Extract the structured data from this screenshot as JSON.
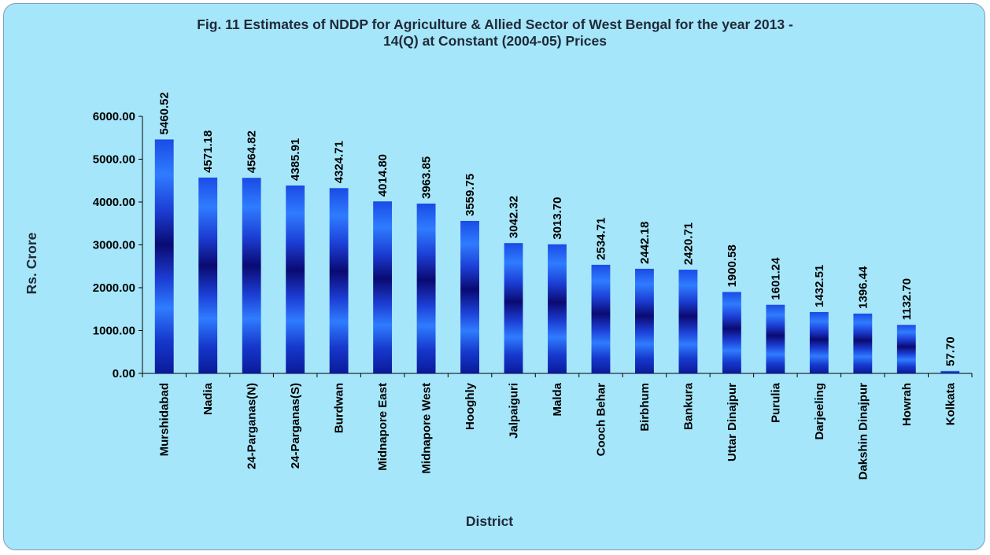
{
  "chart_data": {
    "type": "bar",
    "title": "Fig. 11 Estimates of NDDP for Agriculture & Allied Sector of West Bengal for the year 2013 -\n14(Q) at Constant (2004-05) Prices",
    "xlabel": "District",
    "ylabel": "Rs. Crore",
    "ylim": [
      0,
      6000
    ],
    "yticks": [
      "0.00",
      "1000.00",
      "2000.00",
      "3000.00",
      "4000.00",
      "5000.00",
      "6000.00"
    ],
    "grid": false,
    "legend": "none",
    "categories": [
      "Murshidabad",
      "Nadia",
      "24-Parganas(N)",
      "24-Parganas(S)",
      "Burdwan",
      "Midnapore East",
      "Midnapore West",
      "Hooghly",
      "Jalpaiguri",
      "Malda",
      "Cooch Behar",
      "Birbhum",
      "Bankura",
      "Uttar Dinajpur",
      "Purulia",
      "Darjeeling",
      "Dakshin Dinajpur",
      "Howrah",
      "Kolkata"
    ],
    "values": [
      5460.52,
      4571.18,
      4564.82,
      4385.91,
      4324.71,
      4014.8,
      3963.85,
      3559.75,
      3042.32,
      3013.7,
      2534.71,
      2442.18,
      2420.71,
      1900.58,
      1601.24,
      1432.51,
      1396.44,
      1132.7,
      57.7
    ],
    "data_labels": [
      "5460.52",
      "4571.18",
      "4564.82",
      "4385.91",
      "4324.71",
      "4014.80",
      "3963.85",
      "3559.75",
      "3042.32",
      "3013.70",
      "2534.71",
      "2442.18",
      "2420.71",
      "1900.58",
      "1601.24",
      "1432.51",
      "1396.44",
      "1132.70",
      "57.70"
    ]
  },
  "colors": {
    "background": "#a6e6fb",
    "border": "#7f9db9",
    "bar_dark": "#0a0a72",
    "bar_light": "#2f7cff"
  }
}
